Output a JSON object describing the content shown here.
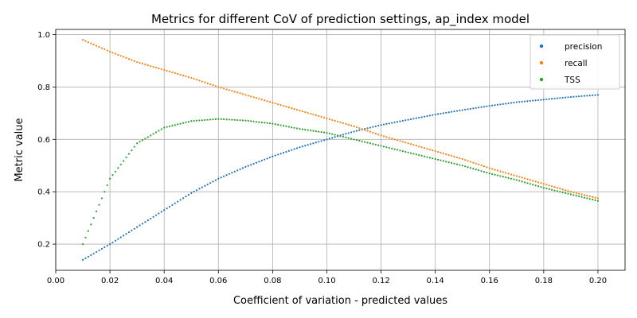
{
  "chart_data": {
    "type": "scatter",
    "title": "Metrics for different CoV of prediction settings, ap_index model",
    "xlabel": "Coefficient of variation - predicted values",
    "ylabel": "Metric value",
    "xlim": [
      0.0,
      0.21
    ],
    "ylim": [
      0.1,
      1.02
    ],
    "xticks": [
      "0.00",
      "0.02",
      "0.04",
      "0.06",
      "0.08",
      "0.10",
      "0.12",
      "0.14",
      "0.16",
      "0.18",
      "0.20"
    ],
    "yticks": [
      "0.2",
      "0.4",
      "0.6",
      "0.8",
      "1.0"
    ],
    "grid": true,
    "legend_position": "top-right",
    "x": [
      0.01,
      0.02,
      0.03,
      0.04,
      0.05,
      0.06,
      0.07,
      0.08,
      0.09,
      0.1,
      0.11,
      0.12,
      0.13,
      0.14,
      0.15,
      0.16,
      0.17,
      0.18,
      0.19,
      0.2
    ],
    "series": [
      {
        "name": "precision",
        "color": "#1f77b4",
        "values": [
          0.14,
          0.2,
          0.265,
          0.33,
          0.395,
          0.45,
          0.495,
          0.535,
          0.57,
          0.6,
          0.63,
          0.655,
          0.675,
          0.695,
          0.712,
          0.728,
          0.742,
          0.752,
          0.762,
          0.77
        ]
      },
      {
        "name": "recall",
        "color": "#ff7f0e",
        "values": [
          0.98,
          0.935,
          0.895,
          0.865,
          0.835,
          0.8,
          0.77,
          0.74,
          0.71,
          0.68,
          0.65,
          0.615,
          0.585,
          0.555,
          0.525,
          0.49,
          0.46,
          0.43,
          0.4,
          0.375
        ]
      },
      {
        "name": "TSS",
        "color": "#2ca02c",
        "values": [
          0.2,
          0.45,
          0.585,
          0.645,
          0.67,
          0.678,
          0.672,
          0.66,
          0.64,
          0.625,
          0.6,
          0.575,
          0.55,
          0.525,
          0.5,
          0.47,
          0.445,
          0.415,
          0.39,
          0.365
        ]
      }
    ]
  }
}
